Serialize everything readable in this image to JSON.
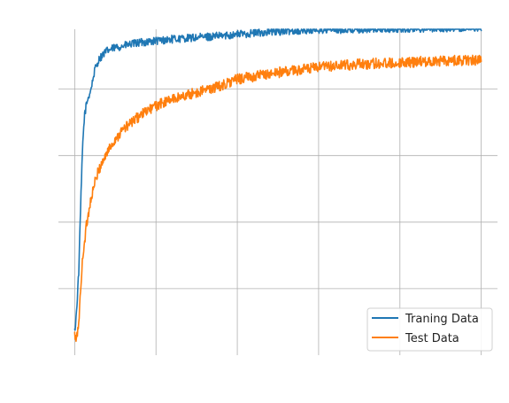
{
  "chart_data": {
    "type": "line",
    "title": "",
    "xlabel": "",
    "ylabel": "",
    "xlim": [
      -0.2,
      5.2
    ],
    "ylim": [
      0.0,
      0.98
    ],
    "xticks": [
      0,
      1,
      2,
      3,
      4,
      5
    ],
    "yticks": [
      0.2,
      0.4,
      0.6,
      0.8
    ],
    "grid": true,
    "legend_position": "bottom-right",
    "series": [
      {
        "name": "Traning Data",
        "color": "#1f77b4",
        "x": [
          0.0,
          0.02,
          0.05,
          0.08,
          0.1,
          0.12,
          0.15,
          0.2,
          0.25,
          0.3,
          0.35,
          0.4,
          0.5,
          0.6,
          0.8,
          1.0,
          1.2,
          1.5,
          1.8,
          2.0,
          2.3,
          2.6,
          3.0,
          3.5,
          4.0,
          4.5,
          5.0
        ],
        "values": [
          0.07,
          0.12,
          0.25,
          0.5,
          0.64,
          0.72,
          0.76,
          0.8,
          0.86,
          0.89,
          0.905,
          0.915,
          0.925,
          0.93,
          0.94,
          0.945,
          0.95,
          0.955,
          0.96,
          0.965,
          0.97,
          0.975,
          0.978,
          0.98,
          0.982,
          0.984,
          0.985
        ]
      },
      {
        "name": "Test Data",
        "color": "#ff7f0e",
        "x": [
          0.0,
          0.02,
          0.05,
          0.08,
          0.1,
          0.15,
          0.2,
          0.25,
          0.3,
          0.4,
          0.5,
          0.6,
          0.8,
          1.0,
          1.2,
          1.5,
          1.8,
          2.0,
          2.5,
          3.0,
          3.5,
          4.0,
          4.5,
          5.0
        ],
        "values": [
          0.06,
          0.04,
          0.1,
          0.22,
          0.3,
          0.4,
          0.47,
          0.52,
          0.56,
          0.61,
          0.65,
          0.68,
          0.72,
          0.75,
          0.77,
          0.79,
          0.81,
          0.83,
          0.85,
          0.865,
          0.875,
          0.88,
          0.885,
          0.888
        ]
      }
    ]
  }
}
